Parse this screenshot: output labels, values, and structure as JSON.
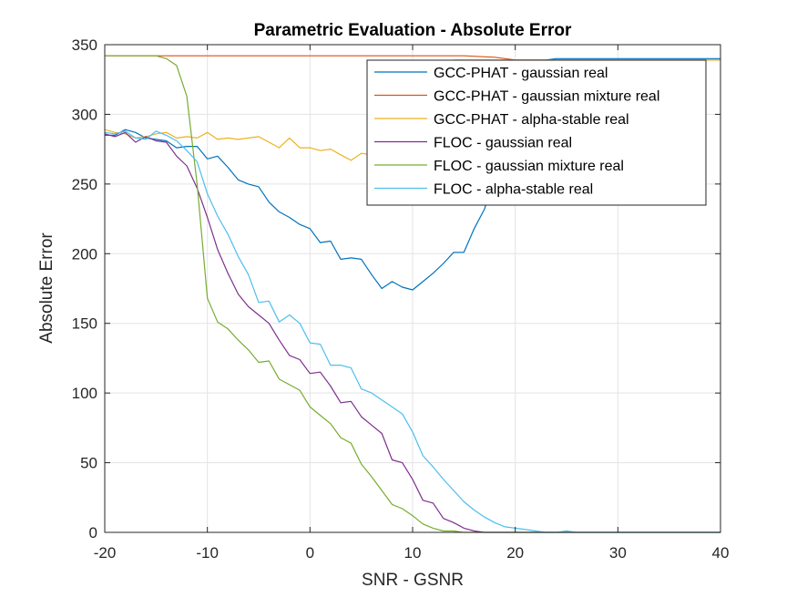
{
  "chart_data": {
    "type": "line",
    "title": "Parametric Evaluation - Absolute Error",
    "xlabel": "SNR - GSNR",
    "ylabel": "Absolute Error",
    "xlim": [
      -20,
      40
    ],
    "ylim": [
      0,
      350
    ],
    "xticks": [
      "-20",
      "-10",
      "0",
      "10",
      "20",
      "30",
      "40"
    ],
    "yticks": [
      "0",
      "50",
      "100",
      "150",
      "200",
      "250",
      "300",
      "350"
    ],
    "grid": true,
    "legend_position": "top-right",
    "series": [
      {
        "name": "GCC-PHAT - gaussian real",
        "color": "#0072bd",
        "x": [
          -20,
          -19,
          -18,
          -17,
          -16,
          -15,
          -14,
          -13,
          -12,
          -11,
          -10,
          -9,
          -8,
          -7,
          -6,
          -5,
          -4,
          -3,
          -2,
          -1,
          0,
          1,
          2,
          3,
          4,
          5,
          6,
          7,
          8,
          9,
          10,
          11,
          12,
          13,
          14,
          15,
          16,
          17,
          18,
          19,
          20,
          21,
          22,
          23,
          24,
          25,
          26,
          27,
          28,
          29,
          30,
          31,
          32,
          33,
          34,
          35,
          36,
          37,
          38,
          39,
          40
        ],
        "values": [
          285,
          285,
          289,
          287,
          283,
          282,
          281,
          276,
          277,
          277,
          268,
          270,
          262,
          253,
          250,
          248,
          237,
          230,
          226,
          221,
          218,
          208,
          209,
          196,
          197,
          196,
          185,
          175,
          180,
          176,
          174,
          180,
          186,
          193,
          201,
          201,
          218,
          232,
          256,
          286,
          310,
          325,
          335,
          339,
          340,
          340,
          340,
          340,
          340,
          340,
          340,
          340,
          340,
          340,
          340,
          340,
          340,
          340,
          340,
          340,
          340
        ]
      },
      {
        "name": "GCC-PHAT - gaussian mixture real",
        "color": "#d95319",
        "x": [
          -20,
          -15,
          -10,
          -5,
          0,
          5,
          10,
          15,
          18,
          19,
          20,
          25,
          30,
          35,
          40
        ],
        "values": [
          342,
          342,
          342,
          342,
          342,
          342,
          342,
          342,
          341,
          340,
          339,
          339,
          339,
          339,
          339
        ]
      },
      {
        "name": "GCC-PHAT - alpha-stable real",
        "color": "#edb120",
        "x": [
          -20,
          -19,
          -18,
          -17,
          -16,
          -15,
          -14,
          -13,
          -12,
          -11,
          -10,
          -9,
          -8,
          -7,
          -6,
          -5,
          -4,
          -3,
          -2,
          -1,
          0,
          1,
          2,
          3,
          4,
          5,
          6,
          7,
          8,
          9,
          10,
          11,
          12,
          13,
          14,
          15,
          16,
          17,
          18,
          19,
          20,
          21,
          22,
          23,
          24,
          25,
          26,
          27,
          28,
          29,
          30,
          31,
          32,
          33,
          34,
          35,
          36,
          37,
          38,
          39,
          40
        ],
        "values": [
          289,
          287,
          286,
          283,
          284,
          286,
          287,
          283,
          284,
          283,
          287,
          282,
          283,
          282,
          283,
          284,
          280,
          276,
          283,
          276,
          276,
          274,
          275,
          271,
          267,
          272,
          271,
          279,
          288,
          295,
          305,
          315,
          325,
          335,
          339,
          339,
          339,
          339,
          339,
          339,
          339,
          339,
          339,
          339,
          339,
          339,
          339,
          339,
          339,
          339,
          339,
          339,
          339,
          339,
          339,
          339,
          339,
          339,
          339,
          339,
          339
        ]
      },
      {
        "name": "FLOC - gaussian real",
        "color": "#7e2f8e",
        "x": [
          -20,
          -19,
          -18,
          -17,
          -16,
          -15,
          -14,
          -13,
          -12,
          -11,
          -10,
          -9,
          -8,
          -7,
          -6,
          -5,
          -4,
          -3,
          -2,
          -1,
          0,
          1,
          2,
          3,
          4,
          5,
          6,
          7,
          8,
          9,
          10,
          11,
          12,
          13,
          14,
          15,
          16,
          17,
          18,
          19,
          20,
          25,
          30,
          35,
          40
        ],
        "values": [
          286,
          284,
          287,
          280,
          284,
          281,
          280,
          270,
          263,
          247,
          226,
          203,
          186,
          171,
          162,
          156,
          150,
          138,
          127,
          124,
          114,
          115,
          105,
          93,
          94,
          83,
          77,
          71,
          52,
          50,
          38,
          23,
          21,
          10,
          7,
          3,
          1,
          0,
          0,
          0,
          0,
          0,
          0,
          0,
          0
        ]
      },
      {
        "name": "FLOC - gaussian mixture real",
        "color": "#77ac30",
        "x": [
          -20,
          -19,
          -18,
          -17,
          -16,
          -15,
          -14,
          -13,
          -12,
          -11,
          -10,
          -9,
          -8,
          -7,
          -6,
          -5,
          -4,
          -3,
          -2,
          -1,
          0,
          1,
          2,
          3,
          4,
          5,
          6,
          7,
          8,
          9,
          10,
          11,
          12,
          13,
          14,
          15,
          16,
          17,
          18,
          19,
          20,
          25,
          30,
          35,
          40
        ],
        "values": [
          342,
          342,
          342,
          342,
          342,
          342,
          340,
          335,
          313,
          250,
          168,
          151,
          146,
          138,
          131,
          122,
          123,
          110,
          106,
          102,
          90,
          84,
          78,
          68,
          64,
          49,
          40,
          30,
          20,
          17,
          12,
          6,
          3,
          1,
          1,
          0,
          0,
          0,
          0,
          0,
          0,
          0,
          0,
          0,
          0
        ]
      },
      {
        "name": "FLOC - alpha-stable real",
        "color": "#4dbeee",
        "x": [
          -20,
          -19,
          -18,
          -17,
          -16,
          -15,
          -14,
          -13,
          -12,
          -11,
          -10,
          -9,
          -8,
          -7,
          -6,
          -5,
          -4,
          -3,
          -2,
          -1,
          0,
          1,
          2,
          3,
          4,
          5,
          6,
          7,
          8,
          9,
          10,
          11,
          12,
          13,
          14,
          15,
          16,
          17,
          18,
          19,
          20,
          21,
          22,
          23,
          24,
          25,
          26,
          27,
          28,
          29,
          30,
          31,
          32,
          33,
          34,
          35,
          36,
          37,
          38,
          39,
          40
        ],
        "values": [
          287,
          286,
          288,
          283,
          282,
          288,
          285,
          281,
          274,
          266,
          243,
          227,
          214,
          198,
          185,
          165,
          166,
          151,
          156,
          150,
          136,
          135,
          120,
          120,
          118,
          103,
          100,
          95,
          90,
          85,
          72,
          55,
          47,
          38,
          30,
          22,
          16,
          11,
          7,
          4,
          3,
          2,
          1,
          0,
          0,
          1,
          0,
          0,
          0,
          0,
          0,
          0,
          0,
          0,
          0,
          0,
          0,
          0,
          0,
          0,
          0
        ]
      }
    ]
  }
}
